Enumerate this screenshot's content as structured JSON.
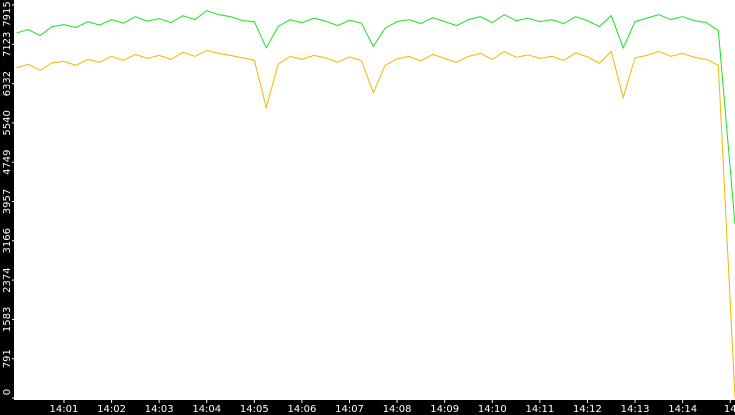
{
  "chart_data": {
    "type": "line",
    "x": [
      0,
      0.25,
      0.5,
      0.75,
      1,
      1.25,
      1.5,
      1.75,
      2,
      2.25,
      2.5,
      2.75,
      3,
      3.25,
      3.5,
      3.75,
      4,
      4.25,
      4.5,
      4.75,
      5,
      5.25,
      5.5,
      5.75,
      6,
      6.25,
      6.5,
      6.75,
      7,
      7.25,
      7.5,
      7.75,
      8,
      8.25,
      8.5,
      8.75,
      9,
      9.25,
      9.5,
      9.75,
      10,
      10.25,
      10.5,
      10.75,
      11,
      11.25,
      11.5,
      11.75,
      12,
      12.25,
      12.5,
      12.75,
      13,
      13.25,
      13.5,
      13.75,
      14,
      14.25,
      14.5,
      14.75,
      15.1
    ],
    "xlim": [
      -0.05,
      15.1
    ],
    "xticks": [
      {
        "value": 1,
        "label": "14:01"
      },
      {
        "value": 2,
        "label": "14:02"
      },
      {
        "value": 3,
        "label": "14:03"
      },
      {
        "value": 4,
        "label": "14:04"
      },
      {
        "value": 5,
        "label": "14:05"
      },
      {
        "value": 6,
        "label": "14:06"
      },
      {
        "value": 7,
        "label": "14:07"
      },
      {
        "value": 8,
        "label": "14:08"
      },
      {
        "value": 9,
        "label": "14:09"
      },
      {
        "value": 10,
        "label": "14:10"
      },
      {
        "value": 11,
        "label": "14:11"
      },
      {
        "value": 12,
        "label": "14:12"
      },
      {
        "value": 13,
        "label": "14:13"
      },
      {
        "value": 14,
        "label": "14:14"
      },
      {
        "value": 15,
        "label": "14"
      }
    ],
    "ylim": [
      0,
      7915
    ],
    "yticks": [
      0,
      791,
      1583,
      2374,
      3166,
      3957,
      4749,
      5540,
      6332,
      7123,
      7915
    ],
    "series": [
      {
        "color": "#1ee01e",
        "values": [
          7350,
          7420,
          7300,
          7480,
          7520,
          7460,
          7580,
          7510,
          7620,
          7550,
          7680,
          7590,
          7640,
          7560,
          7700,
          7620,
          7800,
          7720,
          7680,
          7600,
          7580,
          7050,
          7480,
          7620,
          7560,
          7650,
          7590,
          7500,
          7610,
          7550,
          7080,
          7450,
          7580,
          7620,
          7540,
          7660,
          7580,
          7500,
          7620,
          7680,
          7560,
          7720,
          7600,
          7650,
          7580,
          7620,
          7540,
          7680,
          7600,
          7480,
          7700,
          7050,
          7580,
          7650,
          7720,
          7620,
          7680,
          7600,
          7560,
          7400,
          3500
        ]
      },
      {
        "color": "#f0b800",
        "values": [
          6650,
          6720,
          6600,
          6750,
          6780,
          6700,
          6820,
          6760,
          6880,
          6800,
          6920,
          6840,
          6900,
          6820,
          6960,
          6880,
          7000,
          6940,
          6900,
          6850,
          6800,
          5850,
          6720,
          6880,
          6820,
          6900,
          6850,
          6760,
          6870,
          6800,
          6150,
          6700,
          6830,
          6880,
          6790,
          6920,
          6840,
          6760,
          6880,
          6940,
          6820,
          6980,
          6860,
          6910,
          6840,
          6880,
          6800,
          6950,
          6870,
          6740,
          6980,
          6050,
          6850,
          6900,
          6980,
          6880,
          6940,
          6860,
          6820,
          6700,
          0
        ]
      }
    ]
  }
}
